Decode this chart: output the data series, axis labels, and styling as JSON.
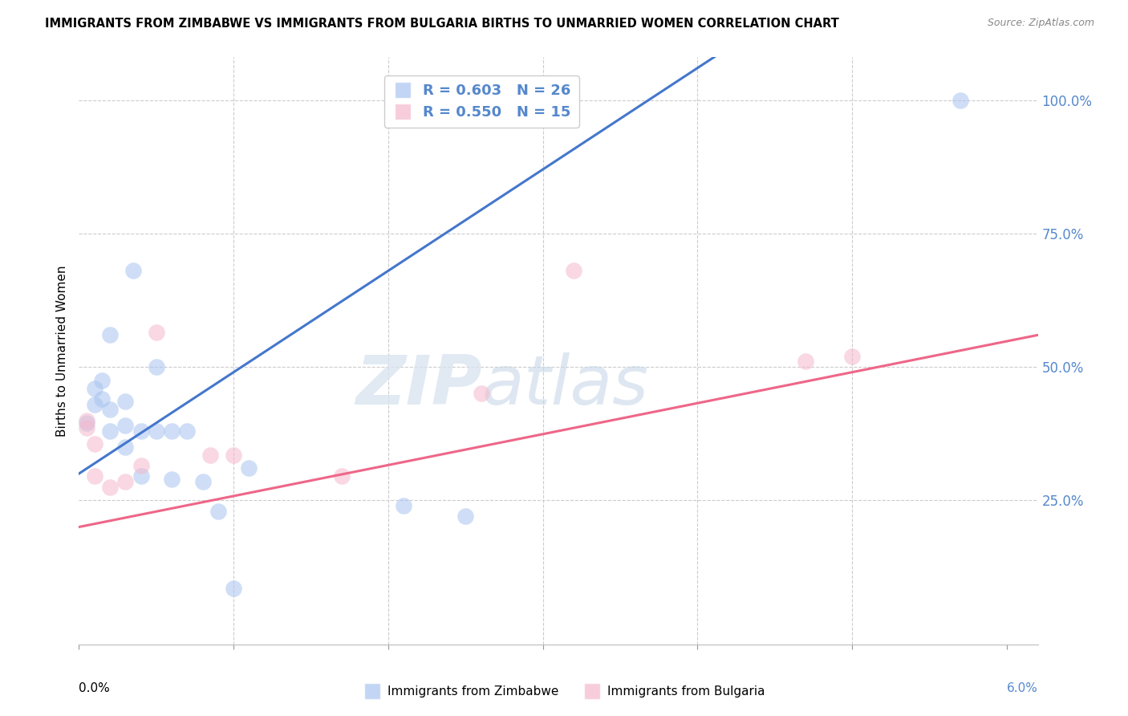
{
  "title": "IMMIGRANTS FROM ZIMBABWE VS IMMIGRANTS FROM BULGARIA BIRTHS TO UNMARRIED WOMEN CORRELATION CHART",
  "source": "Source: ZipAtlas.com",
  "ylabel": "Births to Unmarried Women",
  "legend1_label": "Immigrants from Zimbabwe",
  "legend2_label": "Immigrants from Bulgaria",
  "R1": "0.603",
  "N1": "26",
  "R2": "0.550",
  "N2": "15",
  "watermark_zip": "ZIP",
  "watermark_atlas": "atlas",
  "blue_scatter_color": "#a8c4f0",
  "pink_scatter_color": "#f5b8cc",
  "blue_line_color": "#4477cc",
  "pink_line_color": "#ee6688",
  "ytick_color": "#5588cc",
  "xlim": [
    0.0,
    0.062
  ],
  "ylim": [
    -0.02,
    1.08
  ],
  "blue_intercept": 0.3,
  "blue_slope": 19.0,
  "pink_intercept": 0.2,
  "pink_slope": 5.8,
  "zimbabwe_x": [
    0.0005,
    0.001,
    0.001,
    0.0015,
    0.0015,
    0.002,
    0.002,
    0.002,
    0.003,
    0.003,
    0.003,
    0.0035,
    0.004,
    0.004,
    0.005,
    0.005,
    0.006,
    0.006,
    0.007,
    0.008,
    0.009,
    0.01,
    0.011,
    0.021,
    0.025,
    0.057
  ],
  "zimbabwe_y": [
    0.395,
    0.43,
    0.46,
    0.44,
    0.475,
    0.38,
    0.42,
    0.56,
    0.35,
    0.39,
    0.435,
    0.68,
    0.295,
    0.38,
    0.38,
    0.5,
    0.29,
    0.38,
    0.38,
    0.285,
    0.23,
    0.085,
    0.31,
    0.24,
    0.22,
    1.0
  ],
  "bulgaria_x": [
    0.0005,
    0.0005,
    0.001,
    0.001,
    0.002,
    0.003,
    0.004,
    0.005,
    0.0085,
    0.01,
    0.017,
    0.026,
    0.032,
    0.047,
    0.05
  ],
  "bulgaria_y": [
    0.385,
    0.4,
    0.295,
    0.355,
    0.275,
    0.285,
    0.315,
    0.565,
    0.335,
    0.335,
    0.295,
    0.45,
    0.68,
    0.51,
    0.52
  ]
}
